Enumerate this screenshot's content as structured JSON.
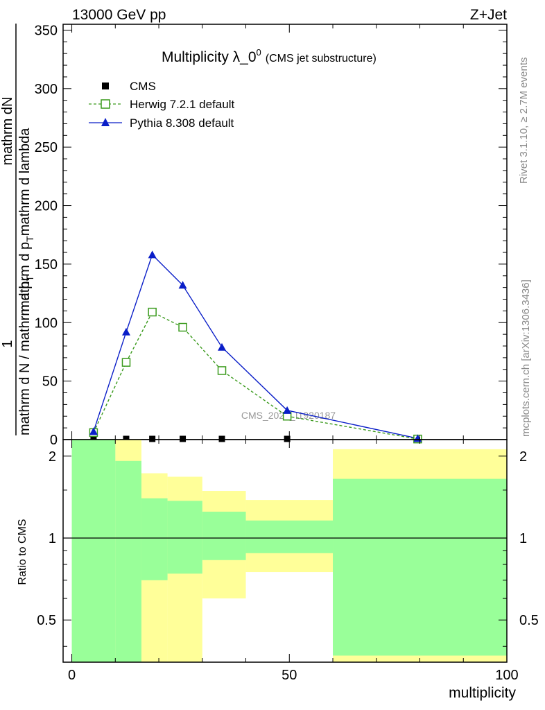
{
  "header": {
    "energy": "13000 GeV pp",
    "process": "Z+Jet"
  },
  "side": {
    "rivet": "Rivet 3.1.10, ≥ 2.7M events",
    "mcplots": "mcplots.cern.ch [arXiv:1306.3436]"
  },
  "watermark": "CMS_2021_I1920187",
  "colors": {
    "cms": "#000000",
    "herwig": "#3a9a1c",
    "pythia": "#0a1ec8",
    "band_stat": "#99ff99",
    "band_total": "#ffff99"
  },
  "chart_data": [
    {
      "type": "line",
      "title_main": "Multiplicity λ_0",
      "title_sup": "0",
      "title_sub": "(CMS jet substructure)",
      "ylabel_num": "mathrm dN",
      "ylabel_den": "mathrm d p",
      "ylabel_den_sub": "T",
      "ylabel_den_rest": "mathrm d lambda",
      "ylabel_prefix": "1",
      "ylabel_bottom": "mathrm d N / mathrm d p",
      "ylabel_bottom_sub": "T",
      "xlim": [
        -2,
        100
      ],
      "ylim": [
        0,
        355
      ],
      "yticks": [
        0,
        50,
        100,
        150,
        200,
        250,
        300,
        350
      ],
      "yticklabels": [
        "0",
        "50",
        "100",
        "150",
        "200",
        "250",
        "300",
        "350"
      ],
      "legend_position": "top-left",
      "series": [
        {
          "name": "CMS",
          "marker": "square-filled",
          "x": [
            5,
            12.5,
            18.5,
            25.5,
            34.5,
            49.5,
            79.5
          ],
          "y": [
            0.6,
            0.6,
            0.6,
            0.6,
            0.6,
            0.6,
            0.3
          ]
        },
        {
          "name": "Herwig 7.2.1 default",
          "marker": "square-open",
          "linestyle": "dashed",
          "x": [
            5,
            12.5,
            18.5,
            25.5,
            34.5,
            49.5,
            79.5
          ],
          "y": [
            6,
            66,
            109,
            96,
            59,
            20,
            0.5
          ]
        },
        {
          "name": "Pythia 8.308 default",
          "marker": "triangle-filled",
          "linestyle": "solid",
          "x": [
            5,
            12.5,
            18.5,
            25.5,
            34.5,
            49.5,
            79.5
          ],
          "y": [
            7,
            92,
            158,
            132,
            79,
            25,
            1
          ]
        }
      ]
    },
    {
      "type": "area",
      "ylabel": "Ratio to CMS",
      "xlabel": "multiplicity",
      "xlim": [
        -2,
        100
      ],
      "xticks": [
        0,
        50,
        100
      ],
      "xticklabels": [
        "0",
        "50",
        "100"
      ],
      "ylim": [
        0.35,
        2.3
      ],
      "yscale": "log",
      "yticks": [
        0.5,
        1,
        2
      ],
      "yticklabels": [
        "0.5",
        "1",
        "2"
      ],
      "reference_line": 1,
      "bins": [
        {
          "lo": 0,
          "hi": 10,
          "stat_lo": 0.35,
          "stat_hi": 2.3,
          "total_lo": 0.35,
          "total_hi": 2.3
        },
        {
          "lo": 10,
          "hi": 16,
          "stat_lo": 0.35,
          "stat_hi": 1.92,
          "total_lo": 0.35,
          "total_hi": 2.3
        },
        {
          "lo": 16,
          "hi": 22,
          "stat_lo": 0.7,
          "stat_hi": 1.4,
          "total_lo": 0.35,
          "total_hi": 1.73
        },
        {
          "lo": 22,
          "hi": 30,
          "stat_lo": 0.74,
          "stat_hi": 1.37,
          "total_lo": 0.35,
          "total_hi": 1.68
        },
        {
          "lo": 30,
          "hi": 40,
          "stat_lo": 0.83,
          "stat_hi": 1.25,
          "total_lo": 0.6,
          "total_hi": 1.49
        },
        {
          "lo": 40,
          "hi": 60,
          "stat_lo": 0.88,
          "stat_hi": 1.16,
          "total_lo": 0.75,
          "total_hi": 1.38
        },
        {
          "lo": 60,
          "hi": 100,
          "stat_lo": 0.37,
          "stat_hi": 1.65,
          "total_lo": 0.35,
          "total_hi": 2.12
        }
      ]
    }
  ]
}
